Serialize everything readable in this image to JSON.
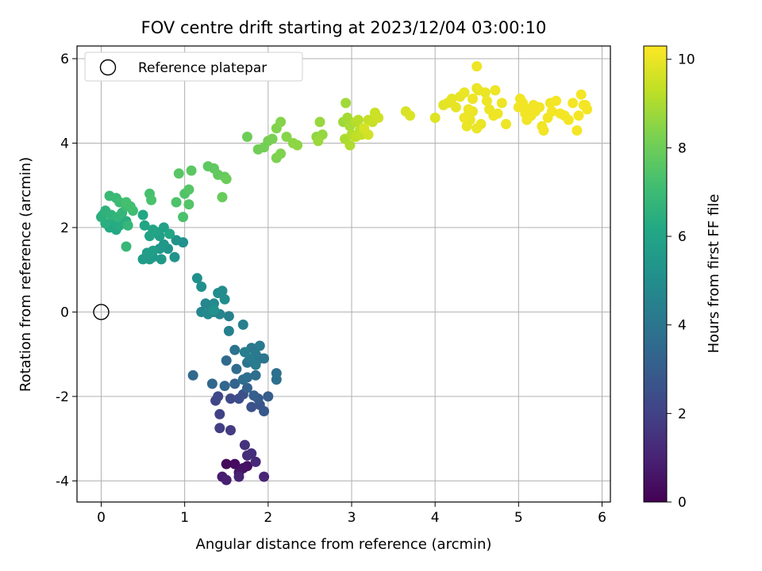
{
  "chart_data": {
    "type": "scatter",
    "title": "FOV centre drift starting at 2023/12/04 03:00:10",
    "xlabel": "Angular distance from reference (arcmin)",
    "ylabel": "Rotation from reference (arcmin)",
    "xlim": [
      -0.29,
      6.1
    ],
    "ylim": [
      -4.5,
      6.3
    ],
    "xticks": [
      0,
      1,
      2,
      3,
      4,
      5,
      6
    ],
    "yticks": [
      -4,
      -2,
      0,
      2,
      4,
      6
    ],
    "grid": true,
    "legend": {
      "position": "top-left",
      "entries": [
        "Reference platepar"
      ]
    },
    "reference_point": {
      "x": 0,
      "y": 0,
      "marker": "open-circle"
    },
    "colorbar": {
      "label": "Hours from first FF file",
      "range": [
        0,
        10.3
      ],
      "ticks": [
        0,
        2,
        4,
        6,
        8,
        10
      ],
      "colormap": "viridis"
    },
    "points": [
      [
        1.5,
        -3.6,
        0.2
      ],
      [
        1.6,
        -3.6,
        0.3
      ],
      [
        1.75,
        -3.65,
        0.4
      ],
      [
        1.7,
        -3.7,
        0.5
      ],
      [
        1.65,
        -3.8,
        0.6
      ],
      [
        1.45,
        -3.9,
        0.8
      ],
      [
        1.5,
        -3.98,
        0.9
      ],
      [
        1.65,
        -3.9,
        1.0
      ],
      [
        1.95,
        -3.9,
        1.1
      ],
      [
        1.85,
        -3.55,
        1.2
      ],
      [
        1.75,
        -3.4,
        1.3
      ],
      [
        1.8,
        -3.35,
        1.4
      ],
      [
        1.72,
        -3.15,
        1.5
      ],
      [
        1.55,
        -2.8,
        1.8
      ],
      [
        1.42,
        -2.75,
        1.9
      ],
      [
        1.42,
        -2.42,
        2.0
      ],
      [
        1.37,
        -2.1,
        2.1
      ],
      [
        1.4,
        -2.0,
        2.2
      ],
      [
        1.55,
        -2.05,
        2.3
      ],
      [
        1.65,
        -2.05,
        2.4
      ],
      [
        1.7,
        -1.95,
        2.5
      ],
      [
        1.8,
        -2.25,
        2.6
      ],
      [
        1.9,
        -2.2,
        2.7
      ],
      [
        1.95,
        -2.35,
        2.8
      ],
      [
        1.88,
        -2.05,
        2.9
      ],
      [
        2.0,
        -2.0,
        3.0
      ],
      [
        1.83,
        -1.98,
        3.1
      ],
      [
        1.75,
        -1.8,
        3.2
      ],
      [
        1.6,
        -1.7,
        3.3
      ],
      [
        1.48,
        -1.75,
        3.4
      ],
      [
        1.33,
        -1.7,
        3.45
      ],
      [
        1.1,
        -1.5,
        3.5
      ],
      [
        1.5,
        -1.15,
        3.55
      ],
      [
        1.62,
        -1.35,
        3.6
      ],
      [
        1.7,
        -1.6,
        3.65
      ],
      [
        1.75,
        -1.55,
        3.7
      ],
      [
        1.85,
        -1.5,
        3.75
      ],
      [
        2.1,
        -1.6,
        3.8
      ],
      [
        2.1,
        -1.45,
        3.85
      ],
      [
        1.6,
        -0.9,
        3.9
      ],
      [
        1.75,
        -1.2,
        3.95
      ],
      [
        1.9,
        -1.1,
        4.0
      ],
      [
        1.95,
        -1.1,
        4.05
      ],
      [
        1.8,
        -0.85,
        4.1
      ],
      [
        1.85,
        -1.0,
        4.15
      ],
      [
        1.9,
        -0.8,
        4.2
      ],
      [
        1.85,
        -1.25,
        4.25
      ],
      [
        1.78,
        -1.1,
        4.3
      ],
      [
        1.72,
        -0.95,
        4.35
      ],
      [
        1.7,
        -0.3,
        4.4
      ],
      [
        1.53,
        -0.45,
        4.45
      ],
      [
        1.53,
        -0.1,
        4.5
      ],
      [
        1.35,
        0.0,
        4.55
      ],
      [
        1.42,
        -0.05,
        4.6
      ],
      [
        1.3,
        0.15,
        4.65
      ],
      [
        1.25,
        0.2,
        4.7
      ],
      [
        1.2,
        0.0,
        4.75
      ],
      [
        1.28,
        -0.05,
        4.8
      ],
      [
        1.35,
        0.2,
        4.85
      ],
      [
        1.4,
        0.45,
        4.9
      ],
      [
        1.45,
        0.5,
        4.95
      ],
      [
        1.48,
        0.3,
        5.0
      ],
      [
        1.2,
        0.6,
        5.05
      ],
      [
        1.15,
        0.8,
        5.1
      ],
      [
        1.35,
        0.05,
        5.15
      ],
      [
        0.98,
        1.65,
        5.2
      ],
      [
        0.9,
        1.7,
        5.25
      ],
      [
        0.88,
        1.3,
        5.3
      ],
      [
        0.8,
        1.5,
        5.35
      ],
      [
        0.75,
        1.6,
        5.4
      ],
      [
        0.7,
        1.5,
        5.45
      ],
      [
        0.72,
        1.25,
        5.5
      ],
      [
        0.62,
        1.3,
        5.55
      ],
      [
        0.58,
        1.25,
        5.6
      ],
      [
        0.5,
        1.25,
        5.65
      ],
      [
        0.55,
        1.4,
        5.7
      ],
      [
        0.62,
        1.45,
        5.75
      ],
      [
        0.7,
        1.8,
        5.8
      ],
      [
        0.75,
        2.0,
        5.85
      ],
      [
        0.65,
        1.9,
        5.9
      ],
      [
        0.58,
        1.8,
        5.95
      ],
      [
        0.62,
        1.95,
        6.0
      ],
      [
        0.52,
        2.05,
        6.05
      ],
      [
        0.82,
        1.85,
        6.1
      ],
      [
        0.5,
        2.3,
        6.15
      ],
      [
        0.18,
        1.95,
        6.2
      ],
      [
        0.1,
        2.0,
        6.25
      ],
      [
        0.15,
        2.15,
        6.3
      ],
      [
        0.22,
        2.05,
        6.35
      ],
      [
        0.3,
        2.15,
        6.4
      ],
      [
        0.05,
        2.1,
        6.45
      ],
      [
        0.0,
        2.25,
        6.5
      ],
      [
        0.02,
        2.3,
        6.55
      ],
      [
        0.05,
        2.4,
        6.6
      ],
      [
        0.12,
        2.3,
        6.65
      ],
      [
        0.2,
        2.25,
        6.7
      ],
      [
        0.25,
        2.35,
        6.75
      ],
      [
        0.32,
        2.05,
        6.8
      ],
      [
        0.3,
        1.55,
        6.85
      ],
      [
        0.1,
        2.75,
        6.9
      ],
      [
        0.18,
        2.7,
        6.95
      ],
      [
        0.22,
        2.6,
        7.0
      ],
      [
        0.3,
        2.5,
        7.05
      ],
      [
        0.38,
        2.4,
        7.1
      ],
      [
        0.35,
        2.5,
        7.15
      ],
      [
        0.3,
        2.6,
        7.2
      ],
      [
        0.58,
        2.8,
        7.25
      ],
      [
        0.6,
        2.65,
        7.3
      ],
      [
        0.98,
        2.25,
        7.35
      ],
      [
        0.9,
        2.6,
        7.4
      ],
      [
        1.0,
        2.8,
        7.45
      ],
      [
        1.05,
        2.55,
        7.5
      ],
      [
        1.05,
        2.9,
        7.55
      ],
      [
        0.93,
        3.28,
        7.6
      ],
      [
        1.08,
        3.35,
        7.65
      ],
      [
        1.28,
        3.45,
        7.7
      ],
      [
        1.35,
        3.4,
        7.75
      ],
      [
        1.4,
        3.25,
        7.8
      ],
      [
        1.48,
        3.2,
        7.85
      ],
      [
        1.45,
        2.72,
        7.9
      ],
      [
        1.5,
        3.15,
        7.95
      ],
      [
        1.75,
        4.15,
        8.0
      ],
      [
        1.88,
        3.85,
        8.05
      ],
      [
        1.95,
        3.9,
        8.1
      ],
      [
        2.0,
        4.05,
        8.15
      ],
      [
        2.05,
        4.1,
        8.2
      ],
      [
        2.1,
        3.65,
        8.25
      ],
      [
        2.15,
        3.75,
        8.3
      ],
      [
        2.1,
        4.35,
        8.35
      ],
      [
        2.15,
        4.5,
        8.4
      ],
      [
        2.22,
        4.15,
        8.45
      ],
      [
        2.3,
        4.0,
        8.5
      ],
      [
        2.35,
        3.95,
        8.55
      ],
      [
        2.58,
        4.15,
        8.6
      ],
      [
        2.65,
        4.2,
        8.65
      ],
      [
        2.62,
        4.5,
        8.7
      ],
      [
        2.6,
        4.05,
        8.75
      ],
      [
        2.9,
        4.5,
        8.8
      ],
      [
        2.93,
        4.95,
        8.85
      ],
      [
        2.95,
        4.6,
        8.9
      ],
      [
        2.98,
        4.4,
        8.95
      ],
      [
        2.92,
        4.1,
        9.0
      ],
      [
        2.98,
        3.95,
        9.05
      ],
      [
        3.0,
        4.2,
        9.1
      ],
      [
        3.05,
        4.5,
        9.15
      ],
      [
        3.08,
        4.55,
        9.2
      ],
      [
        3.1,
        4.3,
        9.25
      ],
      [
        3.05,
        4.15,
        9.3
      ],
      [
        3.12,
        4.2,
        9.35
      ],
      [
        3.2,
        4.55,
        9.4
      ],
      [
        3.25,
        4.5,
        9.45
      ],
      [
        3.28,
        4.72,
        9.5
      ],
      [
        3.32,
        4.6,
        9.55
      ],
      [
        3.2,
        4.2,
        9.6
      ],
      [
        3.15,
        4.35,
        9.65
      ],
      [
        3.65,
        4.75,
        9.7
      ],
      [
        3.7,
        4.65,
        9.75
      ],
      [
        4.0,
        4.6,
        9.8
      ],
      [
        4.1,
        4.9,
        9.85
      ],
      [
        4.15,
        4.95,
        9.9
      ],
      [
        4.2,
        5.05,
        9.95
      ],
      [
        4.25,
        4.85,
        9.95
      ],
      [
        4.3,
        5.1,
        9.95
      ],
      [
        4.35,
        5.2,
        10.0
      ],
      [
        4.38,
        4.4,
        10.0
      ],
      [
        4.42,
        4.55,
        10.0
      ],
      [
        4.45,
        4.75,
        10.0
      ],
      [
        4.5,
        5.3,
        10.0
      ],
      [
        4.52,
        5.25,
        10.0
      ],
      [
        4.55,
        4.45,
        10.0
      ],
      [
        4.5,
        4.35,
        10.0
      ],
      [
        4.6,
        5.2,
        10.0
      ],
      [
        4.62,
        5.0,
        10.05
      ],
      [
        4.65,
        4.8,
        10.05
      ],
      [
        4.7,
        4.65,
        10.05
      ],
      [
        4.72,
        5.25,
        10.05
      ],
      [
        4.75,
        4.7,
        10.05
      ],
      [
        4.8,
        4.95,
        10.05
      ],
      [
        4.85,
        4.45,
        10.05
      ],
      [
        4.5,
        5.82,
        10.05
      ],
      [
        4.45,
        5.05,
        10.05
      ],
      [
        4.4,
        4.8,
        10.05
      ],
      [
        4.35,
        4.6,
        10.05
      ],
      [
        5.0,
        4.85,
        10.1
      ],
      [
        5.02,
        5.05,
        10.1
      ],
      [
        5.05,
        4.95,
        10.1
      ],
      [
        5.08,
        4.7,
        10.1
      ],
      [
        5.1,
        4.55,
        10.1
      ],
      [
        5.12,
        4.8,
        10.1
      ],
      [
        5.15,
        4.65,
        10.1
      ],
      [
        5.18,
        4.9,
        10.1
      ],
      [
        5.2,
        4.75,
        10.1
      ],
      [
        5.25,
        4.85,
        10.1
      ],
      [
        5.28,
        4.4,
        10.1
      ],
      [
        5.3,
        4.3,
        10.1
      ],
      [
        5.35,
        4.6,
        10.1
      ],
      [
        5.38,
        4.95,
        10.1
      ],
      [
        5.4,
        4.75,
        10.15
      ],
      [
        5.45,
        5.0,
        10.15
      ],
      [
        5.5,
        4.7,
        10.15
      ],
      [
        5.55,
        4.65,
        10.15
      ],
      [
        5.6,
        4.55,
        10.15
      ],
      [
        5.65,
        4.95,
        10.15
      ],
      [
        5.7,
        4.3,
        10.15
      ],
      [
        5.72,
        4.65,
        10.15
      ],
      [
        5.75,
        5.15,
        10.15
      ],
      [
        5.78,
        4.9,
        10.15
      ],
      [
        5.82,
        4.8,
        10.15
      ],
      [
        5.8,
        4.9,
        10.15
      ]
    ]
  }
}
